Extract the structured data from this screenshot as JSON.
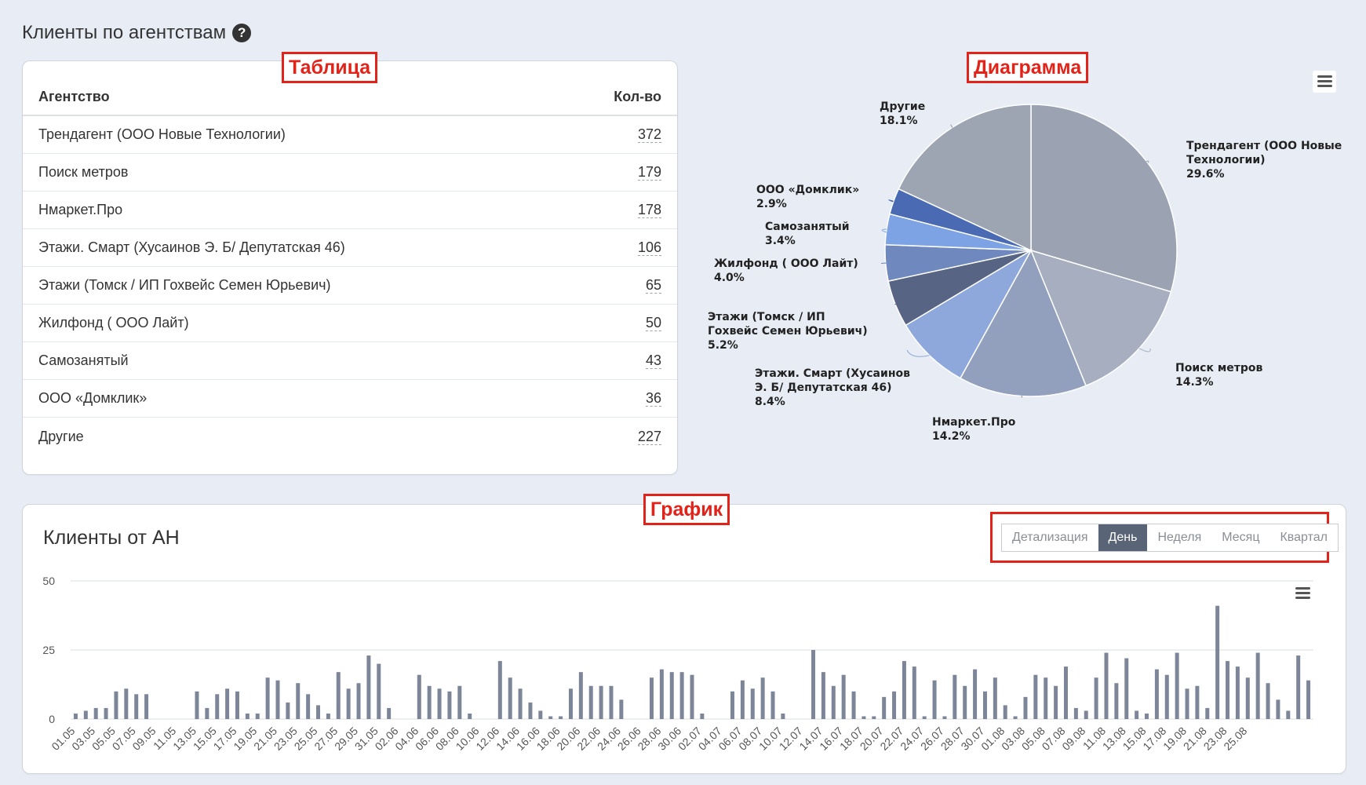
{
  "section_title": "Клиенты по агентствам",
  "help_icon": "question-circle-icon",
  "annotations": {
    "table": "Таблица",
    "diagram": "Диаграмма",
    "graph": "График"
  },
  "table": {
    "headers": {
      "agency": "Агентство",
      "count": "Кол-во"
    },
    "rows": [
      {
        "name": "Трендагент (ООО Новые Технологии)",
        "value": "372"
      },
      {
        "name": "Поиск метров",
        "value": "179"
      },
      {
        "name": "Нмаркет.Про",
        "value": "178"
      },
      {
        "name": "Этажи. Смарт (Хусаинов Э. Б/ Депутатская 46)",
        "value": "106"
      },
      {
        "name": "Этажи (Томск / ИП Гохвейс Семен Юрьевич)",
        "value": "65"
      },
      {
        "name": "Жилфонд ( ООО Лайт)",
        "value": "50"
      },
      {
        "name": "Самозанятый",
        "value": "43"
      },
      {
        "name": "ООО «Домклик»",
        "value": "36"
      },
      {
        "name": "Другие",
        "value": "227"
      }
    ]
  },
  "menu_icon": "hamburger-menu-icon",
  "graph": {
    "title": "Клиенты от АН",
    "detail_label": "Детализация",
    "buttons": [
      "День",
      "Неделя",
      "Месяц",
      "Квартал"
    ],
    "active_button": "День"
  },
  "colors": {
    "accent": "#5a6477",
    "annotation": "#e2231a",
    "bar": "#7d8598"
  },
  "chart_data": [
    {
      "type": "pie",
      "slices": [
        {
          "label": "Трендагент (ООО Новые Технологии)",
          "value": 29.6,
          "color": "#9ba2b2"
        },
        {
          "label": "Поиск метров",
          "value": 14.3,
          "color": "#a6aec0"
        },
        {
          "label": "Нмаркет.Про",
          "value": 14.2,
          "color": "#929fbd"
        },
        {
          "label": "Этажи. Смарт (Хусаинов Э. Б/ Депутатская 46)",
          "value": 8.4,
          "color": "#8ea8dc"
        },
        {
          "label": "Этажи (Томск / ИП Гохвейс Семен Юрьевич)",
          "value": 5.2,
          "color": "#586484"
        },
        {
          "label": "Жилфонд ( ООО Лайт)",
          "value": 4.0,
          "color": "#6f88bd"
        },
        {
          "label": "Самозанятый",
          "value": 3.4,
          "color": "#7ea3e4"
        },
        {
          "label": "ООО «Домклик»",
          "value": 2.9,
          "color": "#4a6bb3"
        },
        {
          "label": "Другие",
          "value": 18.1,
          "color": "#9ea5b2"
        }
      ]
    },
    {
      "type": "bar",
      "ylim": [
        0,
        50
      ],
      "yticks": [
        0,
        25,
        50
      ],
      "grid": true,
      "x_labels": [
        "01.05",
        "03.05",
        "05.05",
        "07.05",
        "09.05",
        "11.05",
        "13.05",
        "15.05",
        "17.05",
        "19.05",
        "21.05",
        "23.05",
        "25.05",
        "27.05",
        "29.05",
        "31.05",
        "02.06",
        "04.06",
        "06.06",
        "08.06",
        "10.06",
        "12.06",
        "14.06",
        "16.06",
        "18.06",
        "20.06",
        "22.06",
        "24.06",
        "26.06",
        "28.06",
        "30.06",
        "02.07",
        "04.07",
        "06.07",
        "08.07",
        "10.07",
        "12.07",
        "14.07",
        "16.07",
        "18.07",
        "20.07",
        "22.07",
        "24.07",
        "26.07",
        "28.07",
        "30.07",
        "01.08",
        "03.08",
        "05.08",
        "07.08",
        "09.08",
        "11.08",
        "13.08",
        "15.08",
        "17.08",
        "19.08",
        "21.08",
        "23.08",
        "25.08"
      ],
      "values": [
        2,
        3,
        4,
        4,
        10,
        11,
        9,
        9,
        0,
        0,
        0,
        0,
        10,
        4,
        9,
        11,
        10,
        2,
        2,
        15,
        14,
        6,
        13,
        9,
        5,
        2,
        17,
        11,
        13,
        23,
        20,
        4,
        0,
        0,
        16,
        12,
        11,
        10,
        12,
        2,
        0,
        0,
        21,
        15,
        11,
        6,
        3,
        1,
        1,
        11,
        17,
        12,
        12,
        12,
        7,
        0,
        0,
        15,
        18,
        17,
        17,
        16,
        2,
        0,
        0,
        10,
        14,
        11,
        15,
        10,
        2,
        0,
        0,
        25,
        17,
        12,
        16,
        10,
        1,
        1,
        8,
        10,
        21,
        19,
        1,
        14,
        1,
        16,
        12,
        18,
        10,
        15,
        5,
        1,
        8,
        16,
        15,
        12,
        19,
        4,
        3,
        15,
        24,
        13,
        22,
        3,
        2,
        18,
        16,
        24,
        11,
        12,
        4,
        41,
        21,
        19,
        15,
        24,
        13,
        7,
        3,
        23,
        14
      ]
    }
  ]
}
